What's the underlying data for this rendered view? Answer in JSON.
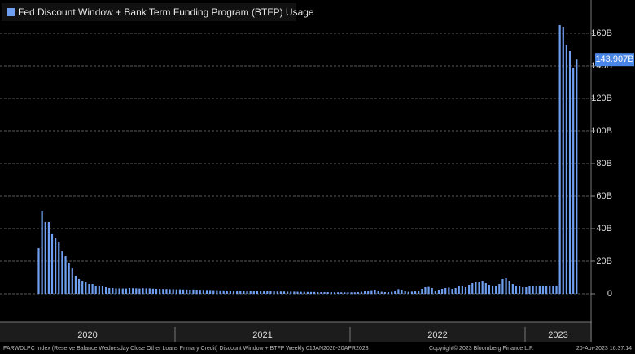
{
  "chart_data": {
    "type": "bar",
    "title": "Fed Discount Window + Bank Term Funding Program (BTFP) Usage",
    "color": "#6f9ff0",
    "categories": [
      null,
      null,
      null,
      null,
      null,
      null,
      null,
      null,
      null,
      null,
      null,
      null,
      null,
      null,
      null,
      null,
      null,
      null,
      null,
      null,
      null,
      null,
      null,
      null,
      null,
      null,
      null,
      null,
      null,
      null,
      null,
      null,
      null,
      null,
      null,
      null,
      null,
      null,
      null,
      null,
      null,
      null,
      null,
      null,
      null,
      null,
      null,
      null,
      null,
      null,
      null,
      null,
      null,
      null,
      null,
      null,
      null,
      null,
      null,
      null,
      null,
      null,
      null,
      null,
      null,
      null,
      null,
      null,
      null,
      null,
      null,
      null,
      null,
      null,
      null,
      null,
      null,
      null,
      null,
      null,
      null,
      null,
      null,
      null,
      null,
      null,
      null,
      null,
      null,
      null,
      null,
      null,
      null,
      null,
      null,
      null,
      null,
      null,
      null,
      null,
      null,
      null,
      null,
      null,
      null,
      null,
      null,
      null,
      null,
      null,
      null,
      null,
      null,
      null,
      null,
      null,
      null,
      null,
      null,
      null,
      null,
      null,
      null,
      null,
      null,
      null,
      null,
      null,
      null,
      null,
      null,
      null,
      null,
      null,
      null,
      null,
      null,
      null,
      null,
      null,
      null,
      null,
      null,
      null,
      null,
      null,
      null,
      null,
      null,
      null,
      null,
      null,
      null,
      null,
      null,
      null,
      null,
      null,
      null,
      null,
      null,
      null,
      null,
      null,
      null,
      null,
      null,
      null,
      null,
      null,
      null,
      null
    ],
    "values": [
      0,
      0,
      0,
      0,
      0,
      0,
      0,
      0,
      0,
      0,
      0,
      28,
      51,
      44,
      44,
      37,
      34,
      32,
      26,
      23,
      19,
      16,
      11,
      9,
      8,
      7,
      6,
      6,
      5,
      5,
      4.5,
      4,
      3.5,
      3.5,
      3.3,
      3.3,
      3.2,
      3.2,
      3.5,
      3.4,
      3.3,
      3.2,
      3.4,
      3.3,
      3.3,
      3.1,
      3.0,
      3.0,
      2.9,
      2.9,
      2.8,
      2.8,
      2.7,
      2.7,
      2.6,
      2.6,
      2.5,
      2.6,
      2.5,
      2.4,
      2.4,
      2.3,
      2.3,
      2.2,
      2.2,
      2.1,
      2.1,
      2.0,
      2.0,
      2.0,
      1.9,
      1.9,
      1.8,
      1.8,
      1.8,
      1.7,
      1.7,
      1.6,
      1.6,
      1.5,
      1.5,
      1.5,
      1.4,
      1.4,
      1.4,
      1.3,
      1.3,
      1.3,
      1.2,
      1.2,
      1.2,
      1.1,
      1.1,
      1.1,
      1.0,
      1.0,
      1.0,
      1.0,
      1.0,
      0.9,
      0.9,
      0.9,
      0.9,
      0.9,
      0.9,
      0.9,
      1.0,
      1.2,
      1.5,
      1.8,
      2.2,
      2.5,
      2.0,
      1.2,
      1.0,
      1.0,
      1.2,
      2.0,
      2.8,
      2.5,
      1.5,
      1.2,
      1.3,
      1.5,
      2.0,
      3.0,
      4.0,
      4.2,
      3.5,
      2.0,
      2.5,
      3.0,
      3.5,
      3.8,
      3.0,
      3.5,
      4.5,
      5.0,
      4.0,
      5.5,
      6.5,
      7.0,
      7.5,
      8.0,
      6.5,
      5.5,
      5.0,
      4.5,
      6.0,
      9.0,
      10.0,
      8.0,
      6.0,
      5.0,
      4.5,
      4.0,
      4.0,
      4.5,
      4.5,
      4.8,
      5.0,
      5.0,
      4.8,
      5.0,
      4.5,
      5.0,
      165,
      164,
      153,
      149,
      139,
      143.907
    ],
    "last_value_label": "143.907B",
    "ylim": [
      -17.5,
      180.5
    ],
    "yticks": [
      0,
      {
        "value": 20,
        "label": "20B"
      },
      {
        "value": 40,
        "label": "40B"
      },
      {
        "value": 60,
        "label": "60B"
      },
      {
        "value": 80,
        "label": "80B"
      },
      {
        "value": 100,
        "label": "100B"
      },
      {
        "value": 120,
        "label": "120B"
      },
      {
        "value": 140,
        "label": "140B"
      },
      {
        "value": 160,
        "label": "160B"
      }
    ],
    "grid": true,
    "year_labels": [
      "2020",
      "2021",
      "2022",
      "2023"
    ],
    "footer_left": "FARWDLPC Index (Reserve Balance Wednesday Close Other Loans Primary Credit) Discount Window + BTFP  Weekly 01JAN2020-20APR2023",
    "footer_center": "Copyright© 2023 Bloomberg Finance L.P.",
    "footer_right": "20-Apr-2023 16:37:14"
  }
}
